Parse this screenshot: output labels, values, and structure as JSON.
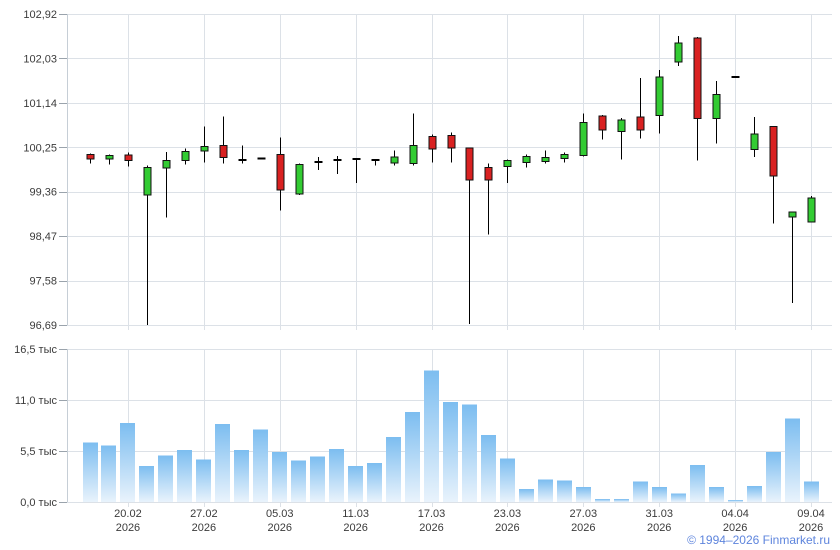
{
  "footer": {
    "copyright": "© 1994–2026 Finmarket.ru",
    "copyright_color": "#5e85dd"
  },
  "chart_data": [
    {
      "type": "candlestick",
      "title": "",
      "grid": true,
      "ylim": [
        96.69,
        102.92
      ],
      "y_ticks": [
        {
          "label": "102,92",
          "value": 102.92
        },
        {
          "label": "102,03",
          "value": 102.03
        },
        {
          "label": "101,14",
          "value": 101.14
        },
        {
          "label": "100,25",
          "value": 100.25
        },
        {
          "label": "99,36",
          "value": 99.36
        },
        {
          "label": "98,47",
          "value": 98.47
        },
        {
          "label": "97,58",
          "value": 97.58
        },
        {
          "label": "96,69",
          "value": 96.69
        }
      ],
      "x_ticks": [
        {
          "date": "20.02",
          "year": "2026",
          "index": 2
        },
        {
          "date": "27.02",
          "year": "2026",
          "index": 6
        },
        {
          "date": "05.03",
          "year": "2026",
          "index": 10
        },
        {
          "date": "11.03",
          "year": "2026",
          "index": 14
        },
        {
          "date": "17.03",
          "year": "2026",
          "index": 18
        },
        {
          "date": "23.03",
          "year": "2026",
          "index": 22
        },
        {
          "date": "27.03",
          "year": "2026",
          "index": 26
        },
        {
          "date": "31.03",
          "year": "2026",
          "index": 30
        },
        {
          "date": "04.04",
          "year": "2026",
          "index": 34
        },
        {
          "date": "09.04",
          "year": "2026",
          "index": 38
        }
      ],
      "candles": [
        {
          "o": 100.11,
          "h": 100.13,
          "l": 99.93,
          "c": 100.02
        },
        {
          "o": 100.02,
          "h": 100.11,
          "l": 99.91,
          "c": 100.09
        },
        {
          "o": 100.1,
          "h": 100.15,
          "l": 99.87,
          "c": 99.99
        },
        {
          "o": 99.29,
          "h": 99.89,
          "l": 96.69,
          "c": 99.85
        },
        {
          "o": 99.84,
          "h": 100.16,
          "l": 98.84,
          "c": 99.99
        },
        {
          "o": 99.99,
          "h": 100.23,
          "l": 99.91,
          "c": 100.17
        },
        {
          "o": 100.18,
          "h": 100.67,
          "l": 99.95,
          "c": 100.27
        },
        {
          "o": 100.29,
          "h": 100.87,
          "l": 99.93,
          "c": 100.05
        },
        {
          "o": 100.0,
          "h": 100.29,
          "l": 99.93,
          "c": 100.0
        },
        {
          "o": 100.03,
          "h": 100.03,
          "l": 100.03,
          "c": 100.03
        },
        {
          "o": 100.11,
          "h": 100.45,
          "l": 98.98,
          "c": 99.39
        },
        {
          "o": 99.31,
          "h": 99.93,
          "l": 99.29,
          "c": 99.91
        },
        {
          "o": 99.96,
          "h": 100.06,
          "l": 99.79,
          "c": 99.96
        },
        {
          "o": 100.0,
          "h": 100.08,
          "l": 99.71,
          "c": 100.0
        },
        {
          "o": 100.02,
          "h": 100.03,
          "l": 99.53,
          "c": 100.02
        },
        {
          "o": 100.0,
          "h": 100.01,
          "l": 99.89,
          "c": 100.0
        },
        {
          "o": 99.94,
          "h": 100.19,
          "l": 99.89,
          "c": 100.06
        },
        {
          "o": 99.93,
          "h": 100.93,
          "l": 99.89,
          "c": 100.29
        },
        {
          "o": 100.47,
          "h": 100.51,
          "l": 99.95,
          "c": 100.22
        },
        {
          "o": 100.49,
          "h": 100.55,
          "l": 99.95,
          "c": 100.24
        },
        {
          "o": 100.24,
          "h": 100.25,
          "l": 96.71,
          "c": 99.59
        },
        {
          "o": 99.85,
          "h": 99.93,
          "l": 98.5,
          "c": 99.59
        },
        {
          "o": 99.87,
          "h": 100.01,
          "l": 99.53,
          "c": 99.99
        },
        {
          "o": 99.95,
          "h": 100.11,
          "l": 99.85,
          "c": 100.07
        },
        {
          "o": 99.97,
          "h": 100.19,
          "l": 99.93,
          "c": 100.05
        },
        {
          "o": 100.03,
          "h": 100.15,
          "l": 99.95,
          "c": 100.11
        },
        {
          "o": 100.09,
          "h": 100.93,
          "l": 100.07,
          "c": 100.75
        },
        {
          "o": 100.88,
          "h": 100.9,
          "l": 100.41,
          "c": 100.6
        },
        {
          "o": 100.57,
          "h": 100.84,
          "l": 100.01,
          "c": 100.8
        },
        {
          "o": 100.86,
          "h": 101.64,
          "l": 100.43,
          "c": 100.6
        },
        {
          "o": 100.89,
          "h": 101.8,
          "l": 100.53,
          "c": 101.66
        },
        {
          "o": 101.96,
          "h": 102.48,
          "l": 101.88,
          "c": 102.34
        },
        {
          "o": 102.44,
          "h": 102.46,
          "l": 99.99,
          "c": 100.83
        },
        {
          "o": 100.83,
          "h": 101.58,
          "l": 100.33,
          "c": 101.31
        },
        {
          "o": 101.66,
          "h": 101.66,
          "l": 101.66,
          "c": 101.66
        },
        {
          "o": 100.21,
          "h": 100.86,
          "l": 100.06,
          "c": 100.52
        },
        {
          "o": 100.67,
          "h": 100.67,
          "l": 98.72,
          "c": 99.67
        },
        {
          "o": 98.85,
          "h": 98.95,
          "l": 97.13,
          "c": 98.95
        },
        {
          "o": 98.75,
          "h": 99.27,
          "l": 98.75,
          "c": 99.23
        }
      ],
      "colors": {
        "up": "#33cc33",
        "down": "#d92121",
        "flat": "#000000",
        "wick": "#000000",
        "body_border": "#111111",
        "grid": "#dce1e7",
        "axis": "#c6ced6",
        "text": "#3b3b3b"
      }
    },
    {
      "type": "bar",
      "title": "",
      "unit": "тыс",
      "grid": true,
      "ylim": [
        0,
        16.5
      ],
      "y_ticks": [
        {
          "label": "16,5 тыс",
          "value": 16.5
        },
        {
          "label": "11,0 тыс",
          "value": 11.0
        },
        {
          "label": "5,5 тыс",
          "value": 5.5
        },
        {
          "label": "0,0 тыс",
          "value": 0.0
        }
      ],
      "values": [
        6.4,
        6.1,
        8.5,
        3.9,
        5.0,
        5.6,
        4.6,
        8.4,
        5.6,
        7.8,
        5.4,
        4.5,
        4.9,
        5.7,
        3.9,
        4.2,
        7.0,
        9.7,
        14.2,
        10.8,
        10.5,
        7.2,
        4.7,
        1.4,
        2.4,
        2.3,
        1.6,
        0.3,
        0.3,
        2.2,
        1.6,
        0.9,
        4.0,
        1.6,
        0.2,
        1.7,
        5.4,
        9.0,
        2.2
      ],
      "colors": {
        "bar_top": "#7cbdf0",
        "bar_bottom": "#e9f3fc"
      }
    }
  ]
}
